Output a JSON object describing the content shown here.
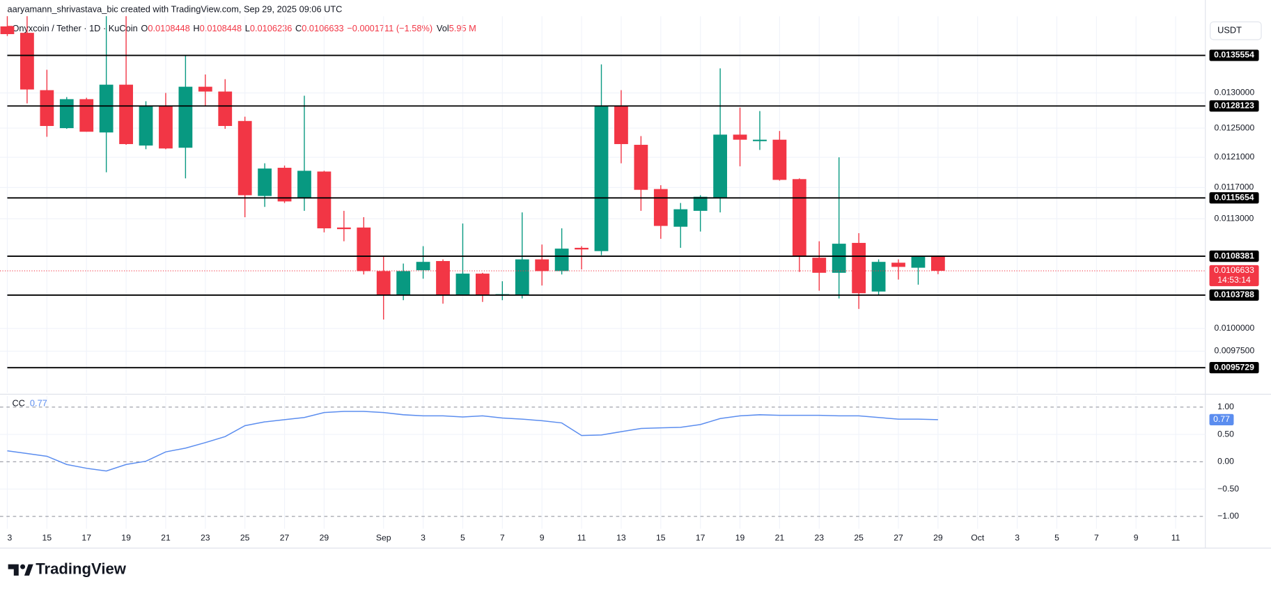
{
  "header": {
    "credit": "aaryamann_shrivastava_bic created with TradingView.com, Sep 29, 2025 09:06 UTC",
    "symbol": "Onyxcoin / Tether · 1D · KuCoin",
    "o_label": "O",
    "h_label": "H",
    "l_label": "L",
    "c_label": "C",
    "change": "−0.0001711 (−1.58%)",
    "vol_label": "Vol",
    "vol": "5.95 M",
    "currency": "USDT",
    "countdown": "14:53:14",
    "brand": "TradingView"
  },
  "chart_data": [
    {
      "type": "candlestick",
      "categories": [
        "3",
        null,
        "15",
        null,
        "17",
        null,
        "19",
        null,
        "21",
        null,
        "23",
        null,
        "25",
        null,
        "27",
        null,
        "29",
        null,
        null,
        "Sep",
        null,
        "3",
        null,
        "5",
        null,
        "7",
        null,
        "9",
        null,
        "11",
        null,
        "13",
        null,
        "15",
        null,
        "17",
        null,
        "19",
        null,
        "21",
        null,
        "23",
        null,
        "25",
        null,
        "27",
        null,
        "29",
        null,
        "Oct",
        null,
        "3",
        null,
        "5",
        null,
        "7",
        null,
        "9",
        null,
        "11"
      ],
      "open": [
        0.014,
        0.0139,
        0.01304,
        0.0125,
        0.01291,
        0.01244,
        0.01312,
        0.01226,
        0.01281,
        0.01223,
        0.01309,
        0.01302,
        0.0126,
        0.01159,
        0.01196,
        0.01156,
        0.01191,
        0.01119,
        0.01119,
        0.01066,
        0.01038,
        0.01067,
        0.01078,
        0.01038,
        0.01063,
        0.01038,
        0.01038,
        0.0108,
        0.01066,
        0.01094,
        0.0109,
        0.01281,
        0.01227,
        0.01168,
        0.0112,
        0.0114,
        0.01157,
        0.01241,
        0.01232,
        0.01234,
        0.01181,
        0.01082,
        0.01064,
        0.011,
        0.01042,
        0.01076,
        0.0107,
        0.0108448,
        null,
        null,
        null,
        null,
        null,
        null,
        null,
        null,
        null,
        null,
        null,
        null
      ],
      "high": [
        0.0142,
        0.0142,
        0.01334,
        0.01294,
        0.01293,
        0.0142,
        0.0142,
        0.01288,
        0.013,
        0.01356,
        0.01327,
        0.0132,
        0.01266,
        0.01202,
        0.01199,
        0.01296,
        0.01192,
        0.0114,
        0.01132,
        0.01084,
        0.01075,
        0.01096,
        0.0108,
        0.01124,
        0.01064,
        0.01054,
        0.01138,
        0.01098,
        0.01118,
        0.01096,
        0.01342,
        0.01304,
        0.01239,
        0.01173,
        0.0115,
        0.0116,
        0.01336,
        0.01279,
        0.01274,
        0.01246,
        0.01182,
        0.01102,
        0.0121,
        0.01112,
        0.0108,
        0.0108,
        0.01084,
        0.0108448,
        null,
        null,
        null,
        null,
        null,
        null,
        null,
        null,
        null,
        null,
        null,
        null
      ],
      "low": [
        0.01385,
        0.01285,
        0.01238,
        0.01249,
        0.01245,
        0.0119,
        0.01227,
        0.01221,
        0.01221,
        0.01182,
        0.01281,
        0.01249,
        0.01132,
        0.01145,
        0.0115,
        0.0114,
        0.01113,
        0.01102,
        0.01062,
        0.0101,
        0.01032,
        0.01057,
        0.01028,
        0.01038,
        0.0103,
        0.01032,
        0.01034,
        0.01049,
        0.01062,
        0.01068,
        0.01085,
        0.01202,
        0.0114,
        0.01105,
        0.01094,
        0.01114,
        0.01138,
        0.01198,
        0.0122,
        0.01179,
        0.01065,
        0.01043,
        0.01034,
        0.01022,
        0.01038,
        0.01056,
        0.0105,
        0.0106236,
        null,
        null,
        null,
        null,
        null,
        null,
        null,
        null,
        null,
        null,
        null,
        null
      ],
      "close": [
        0.01388,
        0.01305,
        0.01253,
        0.01291,
        0.01245,
        0.01312,
        0.01228,
        0.01281,
        0.01222,
        0.01309,
        0.01302,
        0.01253,
        0.0116,
        0.01195,
        0.01152,
        0.01192,
        0.01118,
        0.01117,
        0.01066,
        0.01038,
        0.01066,
        0.01077,
        0.01038,
        0.01063,
        0.01038,
        0.01039,
        0.0108,
        0.01066,
        0.01093,
        0.01092,
        0.01281,
        0.01228,
        0.01167,
        0.01121,
        0.01142,
        0.01158,
        0.01241,
        0.01234,
        0.01234,
        0.0118,
        0.01083,
        0.01064,
        0.01099,
        0.0104,
        0.01077,
        0.01071,
        0.01083,
        0.0106633,
        null,
        null,
        null,
        null,
        null,
        null,
        null,
        null,
        null,
        null,
        null,
        null
      ],
      "up_color": "#089981",
      "down_color": "#f23645",
      "ylim": [
        0.00931,
        0.01416
      ],
      "log_scale": true,
      "grid": true,
      "yticks": [
        {
          "value": 0.013,
          "label": "0.0130000"
        },
        {
          "value": 0.0125,
          "label": "0.0125000"
        },
        {
          "value": 0.0121,
          "label": "0.0121000"
        },
        {
          "value": 0.0117,
          "label": "0.0117000"
        },
        {
          "value": 0.0113,
          "label": "0.0113000"
        },
        {
          "value": 0.01,
          "label": "0.0100000"
        },
        {
          "value": 0.00975,
          "label": "0.0097500"
        }
      ],
      "levels": [
        0.0135554,
        0.0128123,
        0.0115654,
        0.0108381,
        0.0103788,
        0.0095729
      ],
      "level_color": "#000000"
    },
    {
      "type": "line",
      "title": "CC",
      "color": "#5b8def",
      "values": [
        0.2,
        0.15,
        0.1,
        -0.05,
        -0.12,
        -0.17,
        -0.05,
        0.01,
        0.18,
        0.25,
        0.35,
        0.46,
        0.66,
        0.73,
        0.77,
        0.81,
        0.9,
        0.92,
        0.92,
        0.9,
        0.86,
        0.84,
        0.84,
        0.82,
        0.84,
        0.8,
        0.78,
        0.75,
        0.71,
        0.48,
        0.49,
        0.55,
        0.61,
        0.62,
        0.63,
        0.68,
        0.79,
        0.84,
        0.86,
        0.85,
        0.85,
        0.85,
        0.84,
        0.84,
        0.81,
        0.78,
        0.78,
        0.77,
        null,
        null,
        null,
        null,
        null,
        null,
        null,
        null,
        null,
        null,
        null,
        null
      ],
      "ylim": [
        -1.18,
        1.19
      ],
      "grid": true,
      "yticks": [
        {
          "value": 1,
          "label": "1.00"
        },
        {
          "value": 0.5,
          "label": "0.50"
        },
        {
          "value": 0,
          "label": "0.00"
        },
        {
          "value": -0.5,
          "label": "−0.50"
        },
        {
          "value": -1,
          "label": "−1.00"
        }
      ]
    }
  ]
}
